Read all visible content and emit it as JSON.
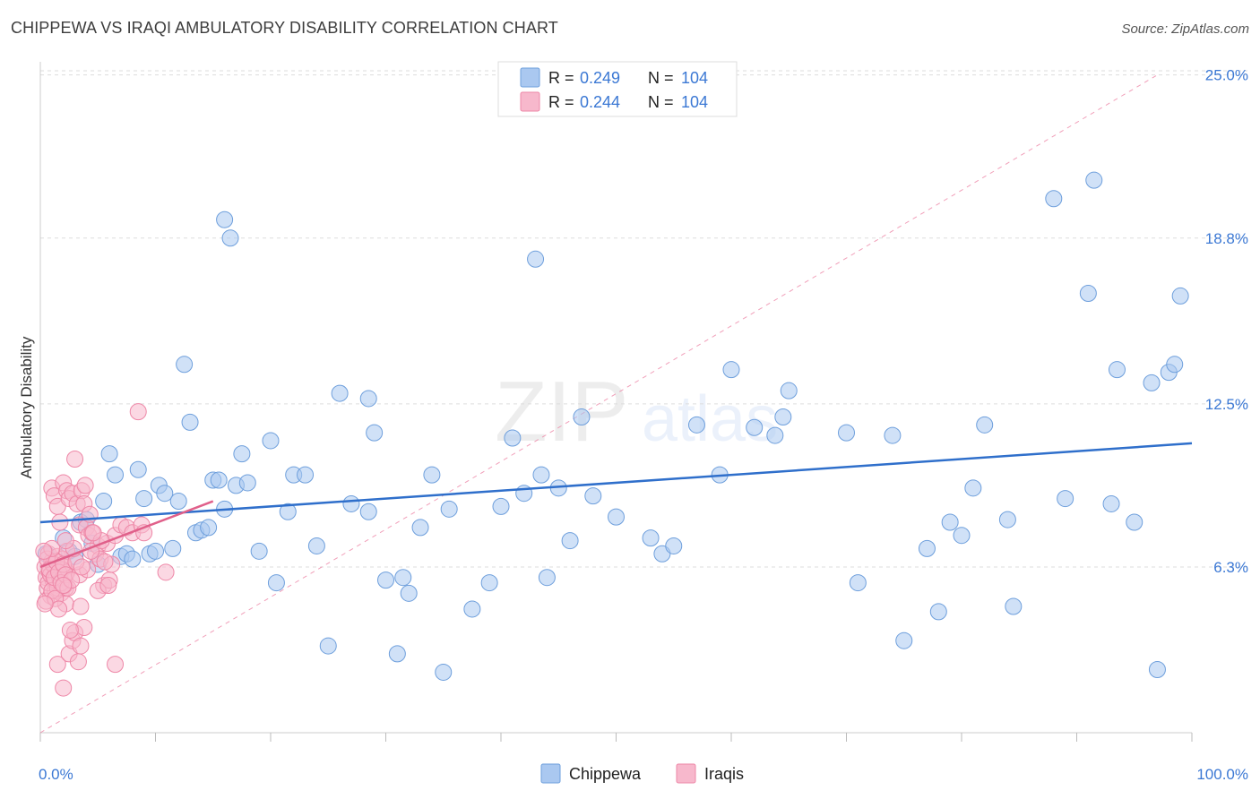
{
  "header": {
    "title": "CHIPPEWA VS IRAQI AMBULATORY DISABILITY CORRELATION CHART",
    "source": "Source: ZipAtlas.com"
  },
  "watermark": {
    "zip": "ZIP",
    "atlas": "atlas"
  },
  "legend": {
    "r_label": "R =",
    "n_label": "N =",
    "items": [
      {
        "r": "0.249",
        "n": "104"
      },
      {
        "r": "0.244",
        "n": "104"
      }
    ]
  },
  "bottom_legend": {
    "chippewa": "Chippewa",
    "iraqis": "Iraqis"
  },
  "chart_data": {
    "type": "scatter",
    "title": "CHIPPEWA VS IRAQI AMBULATORY DISABILITY CORRELATION CHART",
    "ylabel": "Ambulatory Disability",
    "xlabel": "",
    "xlim": [
      0,
      100
    ],
    "ylim": [
      0,
      25.5
    ],
    "x_tick_labels": [
      "0.0%",
      "100.0%"
    ],
    "y_ticks": [
      6.3,
      12.5,
      18.8,
      25.0
    ],
    "y_tick_labels": [
      "6.3%",
      "12.5%",
      "18.8%",
      "25.0%"
    ],
    "legend_position": "top-center",
    "colors": {
      "chippewa_fill": "#aac8f0",
      "chippewa_stroke": "#6e9fdc",
      "chippewa_line": "#2f6fcb",
      "iraqis_fill": "#f7b8cc",
      "iraqis_stroke": "#ee87a7",
      "iraqis_line": "#e0608a",
      "axis_text": "#3b78d4",
      "grid": "#dddddd"
    },
    "series": [
      {
        "name": "Chippewa",
        "trend": {
          "x": [
            0,
            100
          ],
          "y": [
            8.0,
            11.0
          ]
        },
        "points": [
          [
            0.5,
            6.8
          ],
          [
            1.5,
            6.3
          ],
          [
            2,
            7.4
          ],
          [
            2.5,
            6.9
          ],
          [
            3,
            6.7
          ],
          [
            3.5,
            8.0
          ],
          [
            4,
            8.1
          ],
          [
            4.5,
            7.2
          ],
          [
            5,
            6.4
          ],
          [
            5.5,
            8.8
          ],
          [
            6,
            10.6
          ],
          [
            6.5,
            9.8
          ],
          [
            7,
            6.7
          ],
          [
            7.5,
            6.8
          ],
          [
            8,
            6.6
          ],
          [
            8.5,
            10.0
          ],
          [
            9,
            8.9
          ],
          [
            9.5,
            6.8
          ],
          [
            10,
            6.9
          ],
          [
            10.3,
            9.4
          ],
          [
            10.8,
            9.1
          ],
          [
            11.5,
            7.0
          ],
          [
            12,
            8.8
          ],
          [
            12.5,
            14.0
          ],
          [
            13,
            11.8
          ],
          [
            13.5,
            7.6
          ],
          [
            14,
            7.7
          ],
          [
            14.6,
            7.8
          ],
          [
            15,
            9.6
          ],
          [
            15.5,
            9.6
          ],
          [
            16,
            8.5
          ],
          [
            16,
            19.5
          ],
          [
            16.5,
            18.8
          ],
          [
            17,
            9.4
          ],
          [
            17.5,
            10.6
          ],
          [
            18,
            9.5
          ],
          [
            19,
            6.9
          ],
          [
            20,
            11.1
          ],
          [
            20.5,
            5.7
          ],
          [
            21.5,
            8.4
          ],
          [
            22,
            9.8
          ],
          [
            23,
            9.8
          ],
          [
            24,
            7.1
          ],
          [
            25,
            3.3
          ],
          [
            26,
            12.9
          ],
          [
            27,
            8.7
          ],
          [
            28.5,
            8.4
          ],
          [
            28.5,
            12.7
          ],
          [
            29,
            11.4
          ],
          [
            30,
            5.8
          ],
          [
            31,
            3.0
          ],
          [
            31.5,
            5.9
          ],
          [
            32,
            5.3
          ],
          [
            33,
            7.8
          ],
          [
            34,
            9.8
          ],
          [
            35,
            2.3
          ],
          [
            35.5,
            8.5
          ],
          [
            37.5,
            4.7
          ],
          [
            39,
            5.7
          ],
          [
            40,
            8.6
          ],
          [
            41,
            11.2
          ],
          [
            42,
            9.1
          ],
          [
            43,
            18.0
          ],
          [
            43.5,
            9.8
          ],
          [
            44,
            5.9
          ],
          [
            45,
            9.3
          ],
          [
            46,
            7.3
          ],
          [
            47,
            12.0
          ],
          [
            48,
            9.0
          ],
          [
            50,
            8.2
          ],
          [
            53,
            7.4
          ],
          [
            54,
            6.8
          ],
          [
            55,
            7.1
          ],
          [
            57,
            11.7
          ],
          [
            59,
            9.8
          ],
          [
            60,
            13.8
          ],
          [
            62,
            11.6
          ],
          [
            63.8,
            11.3
          ],
          [
            64.5,
            12.0
          ],
          [
            65,
            13.0
          ],
          [
            70,
            11.4
          ],
          [
            71,
            5.7
          ],
          [
            74,
            11.3
          ],
          [
            75,
            3.5
          ],
          [
            77,
            7.0
          ],
          [
            78,
            4.6
          ],
          [
            79,
            8.0
          ],
          [
            80,
            7.5
          ],
          [
            81,
            9.3
          ],
          [
            82,
            11.7
          ],
          [
            84,
            8.1
          ],
          [
            84.5,
            4.8
          ],
          [
            88,
            20.3
          ],
          [
            89,
            8.9
          ],
          [
            91,
            16.7
          ],
          [
            91.5,
            21.0
          ],
          [
            93,
            8.7
          ],
          [
            93.5,
            13.8
          ],
          [
            95,
            8.0
          ],
          [
            96.5,
            13.3
          ],
          [
            97,
            2.4
          ],
          [
            98,
            13.7
          ],
          [
            98.5,
            14.0
          ],
          [
            99,
            16.6
          ]
        ]
      },
      {
        "name": "Iraqis",
        "trend": {
          "x": [
            0,
            15
          ],
          "y": [
            6.3,
            8.8
          ]
        },
        "diagonal": {
          "x": [
            0,
            97
          ],
          "y": [
            0,
            25.0
          ]
        },
        "points": [
          [
            0.4,
            6.3
          ],
          [
            0.5,
            5.9
          ],
          [
            0.6,
            5.5
          ],
          [
            0.7,
            6.8
          ],
          [
            0.8,
            6.1
          ],
          [
            0.9,
            5.2
          ],
          [
            1.0,
            6.5
          ],
          [
            1.1,
            5.8
          ],
          [
            1.2,
            6.4
          ],
          [
            1.3,
            5.4
          ],
          [
            1.4,
            6.0
          ],
          [
            1.5,
            6.7
          ],
          [
            1.6,
            5.6
          ],
          [
            1.7,
            6.2
          ],
          [
            1.8,
            5.3
          ],
          [
            1.9,
            6.6
          ],
          [
            2.0,
            5.9
          ],
          [
            2.1,
            6.3
          ],
          [
            2.2,
            5.5
          ],
          [
            2.3,
            6.9
          ],
          [
            0.5,
            5.0
          ],
          [
            0.7,
            5.7
          ],
          [
            0.9,
            6.0
          ],
          [
            1.1,
            6.4
          ],
          [
            1.3,
            5.8
          ],
          [
            1.5,
            5.5
          ],
          [
            1.7,
            5.9
          ],
          [
            1.9,
            6.2
          ],
          [
            2.1,
            5.6
          ],
          [
            2.3,
            6.1
          ],
          [
            0.6,
            6.6
          ],
          [
            0.8,
            6.2
          ],
          [
            1.0,
            5.4
          ],
          [
            1.2,
            5.9
          ],
          [
            1.4,
            6.5
          ],
          [
            1.6,
            6.1
          ],
          [
            1.8,
            5.7
          ],
          [
            2.0,
            6.4
          ],
          [
            2.2,
            6.0
          ],
          [
            2.4,
            5.5
          ],
          [
            1.0,
            9.3
          ],
          [
            1.2,
            9.0
          ],
          [
            1.5,
            8.6
          ],
          [
            1.7,
            8.0
          ],
          [
            2.0,
            9.5
          ],
          [
            2.3,
            9.2
          ],
          [
            2.5,
            8.9
          ],
          [
            2.8,
            9.1
          ],
          [
            3.0,
            10.4
          ],
          [
            3.2,
            8.7
          ],
          [
            3.4,
            7.9
          ],
          [
            3.6,
            9.2
          ],
          [
            3.8,
            8.7
          ],
          [
            4.0,
            7.8
          ],
          [
            4.2,
            7.5
          ],
          [
            4.5,
            7.6
          ],
          [
            4.8,
            6.8
          ],
          [
            5.0,
            7.1
          ],
          [
            5.2,
            6.6
          ],
          [
            5.5,
            5.6
          ],
          [
            5.8,
            7.2
          ],
          [
            6.0,
            5.8
          ],
          [
            6.2,
            6.4
          ],
          [
            6.5,
            7.5
          ],
          [
            7.0,
            7.9
          ],
          [
            7.5,
            7.8
          ],
          [
            8.0,
            7.6
          ],
          [
            8.5,
            12.2
          ],
          [
            8.8,
            7.9
          ],
          [
            9.0,
            7.6
          ],
          [
            1.5,
            2.6
          ],
          [
            2.0,
            1.7
          ],
          [
            2.5,
            3.0
          ],
          [
            2.8,
            3.5
          ],
          [
            3.0,
            3.8
          ],
          [
            3.3,
            2.7
          ],
          [
            3.5,
            3.3
          ],
          [
            3.8,
            4.0
          ],
          [
            6.5,
            2.6
          ],
          [
            2.2,
            4.9
          ],
          [
            2.6,
            3.9
          ],
          [
            3.4,
            6.0
          ],
          [
            4.1,
            6.2
          ],
          [
            5.0,
            5.4
          ],
          [
            2.7,
            5.8
          ],
          [
            3.1,
            6.5
          ],
          [
            2.9,
            7.0
          ],
          [
            4.4,
            6.9
          ],
          [
            5.6,
            6.5
          ],
          [
            5.3,
            7.3
          ],
          [
            1.3,
            5.1
          ],
          [
            1.6,
            4.7
          ],
          [
            3.5,
            4.8
          ],
          [
            4.6,
            7.6
          ],
          [
            10.9,
            6.1
          ],
          [
            1.0,
            7.0
          ],
          [
            4.3,
            8.3
          ],
          [
            3.9,
            9.4
          ],
          [
            2.2,
            7.3
          ],
          [
            3.6,
            6.3
          ],
          [
            0.3,
            6.9
          ],
          [
            0.4,
            4.9
          ],
          [
            2.0,
            5.6
          ],
          [
            5.9,
            5.6
          ]
        ]
      }
    ]
  }
}
